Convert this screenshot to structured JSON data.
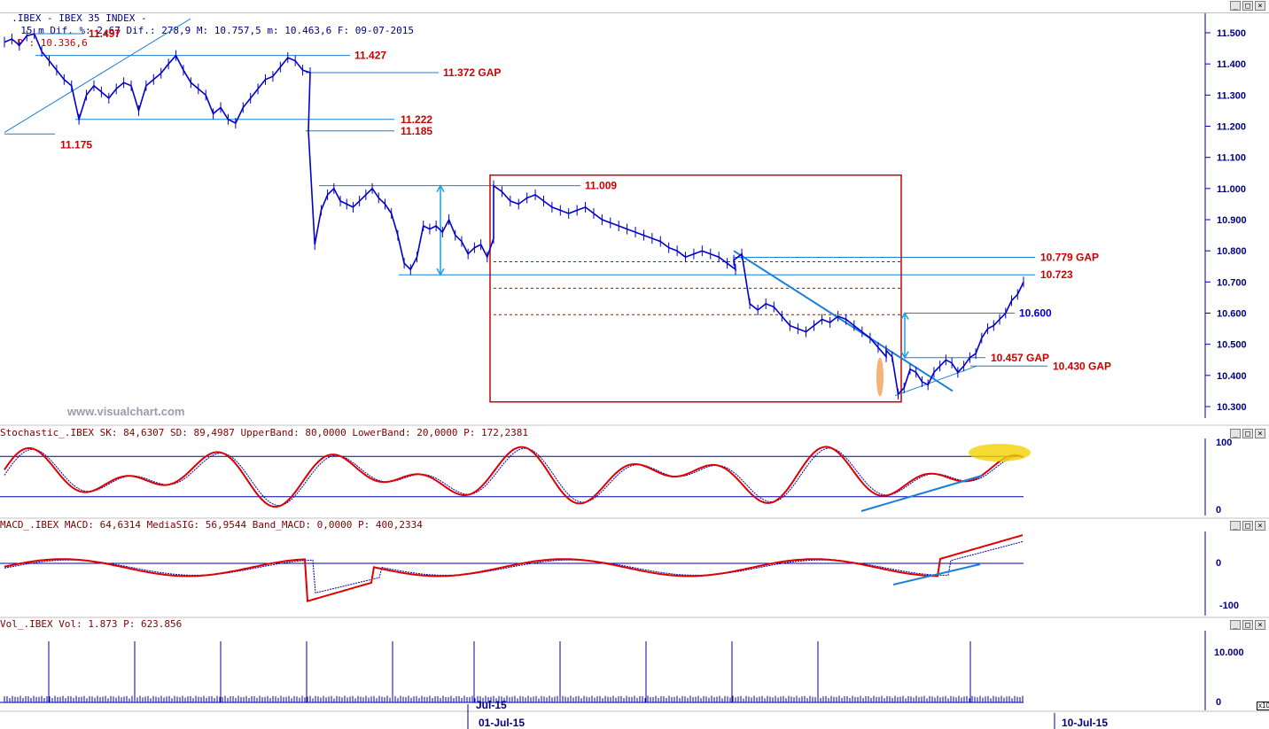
{
  "window": {
    "title_symbol": ".IBEX - IBEX 35 INDEX -",
    "title_info": "15 m Dif. %: 2,67 Dif.: 278,9 M: 10.757,5 m: 10.463,6 F: 09-07-2015",
    "title_p": "P : 10.336,6",
    "watermark": "www.visualchart.com"
  },
  "colors": {
    "price": "#0000cc",
    "level_text": "#cc0000",
    "trend_line": "#1a7fd6",
    "indicator_main": "#dd0000",
    "indicator_signal": "#0000aa",
    "highlight_orange": "#f4a460",
    "highlight_yellow": "#f2d200"
  },
  "panels": {
    "stochastic": {
      "title": "Stochastic_.IBEX SK: 84,6307 SD: 89,4987 UpperBand: 80,0000 LowerBand: 20,0000 P: 172,2381",
      "ticks": [
        "100",
        "0"
      ]
    },
    "macd": {
      "title": "MACD_.IBEX MACD: 64,6314 MediaSIG: 56,9544 Band_MACD: 0,0000 P: 400,2334",
      "ticks": [
        "0",
        "-100"
      ]
    },
    "volume": {
      "title": "Vol_.IBEX Vol: 1.873 P: 623.856",
      "ticks": [
        "10.000",
        "0"
      ],
      "scale_note": "x10"
    }
  },
  "chart_data": {
    "type": "line",
    "title": "IBEX 35 INDEX 15 m",
    "y_ticks": [
      "11.500",
      "11.400",
      "11.300",
      "11.200",
      "11.100",
      "11.000",
      "10.900",
      "10.800",
      "10.700",
      "10.600",
      "10.500",
      "10.400",
      "10.300"
    ],
    "ylim": [
      10300,
      11500
    ],
    "x_ticks": [
      "Jul-15",
      "01-Jul-15",
      "10-Jul-15"
    ],
    "series": [
      {
        "values": [
          11470,
          11480,
          11460,
          11490,
          11497,
          11440,
          11410,
          11380,
          11350,
          11330,
          11222,
          11300,
          11330,
          11310,
          11290,
          11320,
          11340,
          11330,
          11250,
          11330,
          11350,
          11370,
          11400,
          11427,
          11380,
          11340,
          11320,
          11300,
          11240,
          11260,
          11222,
          11210,
          11260,
          11290,
          11320,
          11350,
          11360,
          11390,
          11420,
          11410,
          11380,
          11372,
          11185,
          10820,
          10930,
          10980,
          11000,
          10960,
          10950,
          10940,
          10960,
          10980,
          11000,
          10970,
          10950,
          10920,
          10850,
          10760,
          10740,
          10780,
          10880,
          10870,
          10880,
          10860,
          10900,
          10850,
          10830,
          10790,
          10810,
          10820,
          10780,
          10840,
          11009,
          10990,
          10960,
          10950,
          10970,
          10980,
          10960,
          10940,
          10930,
          10920,
          10930,
          10940,
          10920,
          10900,
          10890,
          10880,
          10870,
          10860,
          10850,
          10840,
          10830,
          10810,
          10800,
          10780,
          10790,
          10800,
          10790,
          10780,
          10760,
          10740,
          10770,
          10790,
          10630,
          10610,
          10630,
          10620,
          10590,
          10560,
          10550,
          10540,
          10560,
          10580,
          10570,
          10590,
          10580,
          10560,
          10540,
          10520,
          10490,
          10460,
          10480,
          10460,
          10340,
          10360,
          10420,
          10410,
          10380,
          10370,
          10410,
          10430,
          10450,
          10440,
          10410,
          10430,
          10457,
          10470,
          10520,
          10550,
          10560,
          10580,
          10600,
          10640,
          10660,
          10700,
          10740,
          10720
        ]
      }
    ],
    "annotations": [
      "11.497",
      "11.427",
      "11.372 GAP",
      "11.222",
      "11.175",
      "11.185",
      "11.009",
      "10.779 GAP",
      "10.723",
      "10.600",
      "10.457 GAP",
      "10.430 GAP"
    ]
  }
}
